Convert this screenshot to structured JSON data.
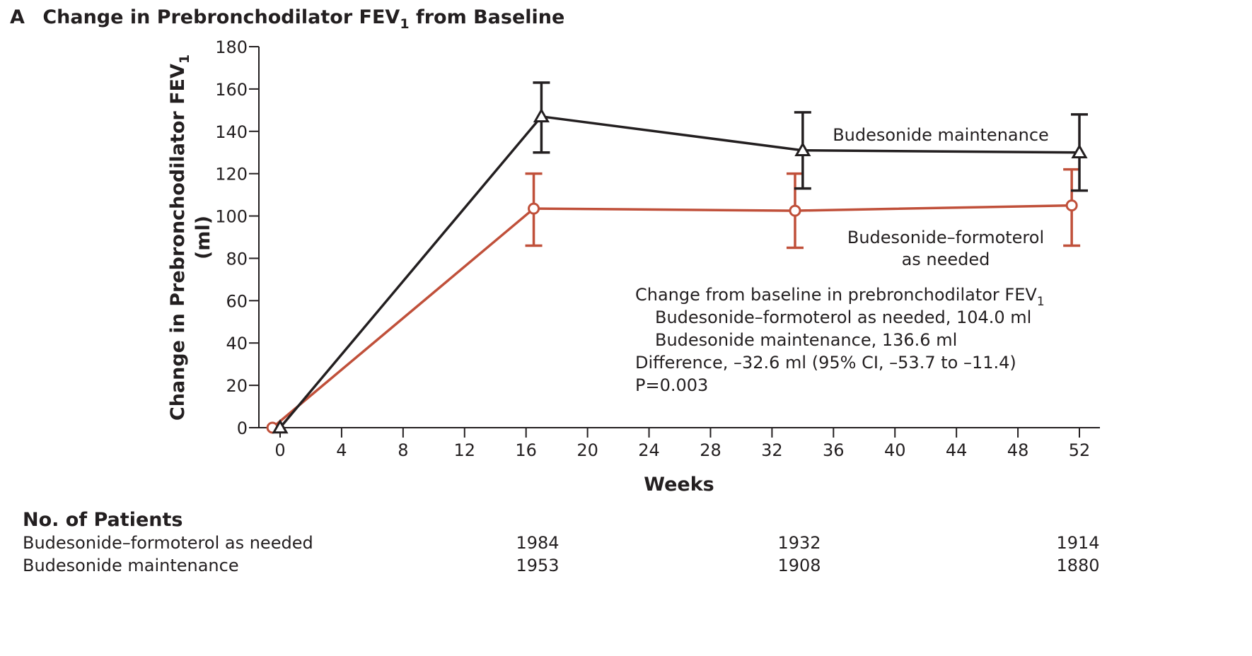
{
  "panel_letter": "A",
  "chart_data": {
    "type": "line",
    "title": "Change in Prebronchodilator FEV",
    "title_subscript": "1",
    "title_suffix": " from Baseline",
    "ylabel_line1": "Change in Prebronchodilator FEV",
    "ylabel_subscript": "1",
    "ylabel_line2": "(ml)",
    "xlabel": "Weeks",
    "xlim": [
      -0.5,
      53
    ],
    "ylim": [
      0,
      180
    ],
    "x_ticks": [
      0,
      4,
      8,
      12,
      16,
      20,
      24,
      28,
      32,
      36,
      40,
      44,
      48,
      52
    ],
    "y_ticks": [
      0,
      20,
      40,
      60,
      80,
      100,
      120,
      140,
      160,
      180
    ],
    "grid": false,
    "series": [
      {
        "name": "Budesonide maintenance",
        "color": "#231f20",
        "marker": "triangle-open",
        "x": [
          0,
          17,
          34,
          52
        ],
        "y": [
          0,
          147,
          131,
          130
        ],
        "err_low": [
          null,
          130,
          113,
          112
        ],
        "err_high": [
          null,
          163,
          149,
          148
        ]
      },
      {
        "name": "Budesonide–formoterol as needed",
        "name_line1": "Budesonide–formoterol",
        "name_line2": "as needed",
        "color": "#c0503a",
        "marker": "circle-open",
        "x": [
          -0.5,
          16.5,
          33.5,
          51.5
        ],
        "y": [
          0,
          103.5,
          102.5,
          105
        ],
        "err_low": [
          null,
          86,
          85,
          86
        ],
        "err_high": [
          null,
          120,
          120,
          122
        ]
      }
    ],
    "annotation": {
      "line1": "Change from baseline in prebronchodilator FEV",
      "line1_subscript": "1",
      "line2": "Budesonide–formoterol as needed, 104.0 ml",
      "line3": "Budesonide maintenance, 136.6 ml",
      "line4": "Difference, –32.6 ml (95% CI, –53.7 to –11.4)",
      "line5": "P=0.003"
    }
  },
  "patients_table": {
    "heading": "No. of Patients",
    "rows": [
      {
        "label": "Budesonide–formoterol as needed",
        "values": [
          "1984",
          "1932",
          "1914"
        ]
      },
      {
        "label": "Budesonide maintenance",
        "values": [
          "1953",
          "1908",
          "1880"
        ]
      }
    ]
  }
}
